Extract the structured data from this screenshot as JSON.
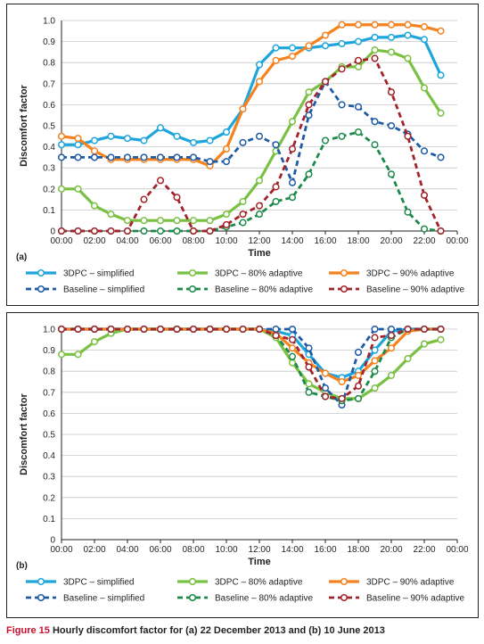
{
  "colors": {
    "blue": "#1ea5dc",
    "green": "#7ac143",
    "orange": "#f5821f",
    "dark_blue": "#1f5aa6",
    "dark_green": "#1d8a4b",
    "dark_red": "#a3232a",
    "grid": "#c8c8c8"
  },
  "figure_caption": {
    "label": "Figure 15",
    "text": "Hourly discomfort factor for (a) 22 December 2013 and (b) 10 June 2013"
  },
  "chart_data": [
    {
      "type": "line",
      "panel_label": "(a)",
      "xlabel": "Time",
      "ylabel": "Discomfort factor",
      "x_ticks": [
        "00:00",
        "02:00",
        "04:00",
        "06:00",
        "08:00",
        "10:00",
        "12:00",
        "14:00",
        "16:00",
        "18:00",
        "20:00",
        "22:00",
        "00:00"
      ],
      "xlim": [
        0,
        24
      ],
      "ylim": [
        0,
        1.0
      ],
      "y_ticks": [
        "0",
        "0.1",
        "0.2",
        "0.3",
        "0.4",
        "0.5",
        "0.6",
        "0.7",
        "0.8",
        "0.9",
        "1.0"
      ],
      "grid": "horizontal",
      "legend_position": "bottom",
      "x": [
        0,
        1,
        2,
        3,
        4,
        5,
        6,
        7,
        8,
        9,
        10,
        11,
        12,
        13,
        14,
        15,
        16,
        17,
        18,
        19,
        20,
        21,
        22,
        23
      ],
      "series": [
        {
          "name": "3DPC – simplified",
          "style": "solid",
          "color": "blue",
          "values": [
            0.41,
            0.41,
            0.43,
            0.45,
            0.44,
            0.43,
            0.49,
            0.45,
            0.42,
            0.43,
            0.47,
            0.58,
            0.79,
            0.87,
            0.87,
            0.87,
            0.88,
            0.89,
            0.9,
            0.92,
            0.92,
            0.93,
            0.91,
            0.74
          ]
        },
        {
          "name": "3DPC – 80% adaptive",
          "style": "solid",
          "color": "green",
          "values": [
            0.2,
            0.2,
            0.12,
            0.08,
            0.05,
            0.05,
            0.05,
            0.05,
            0.05,
            0.05,
            0.08,
            0.14,
            0.24,
            0.38,
            0.52,
            0.66,
            0.71,
            0.78,
            0.78,
            0.86,
            0.85,
            0.82,
            0.68,
            0.56
          ]
        },
        {
          "name": "3DPC – 90% adaptive",
          "style": "solid",
          "color": "orange",
          "values": [
            0.45,
            0.44,
            0.38,
            0.34,
            0.34,
            0.34,
            0.34,
            0.34,
            0.34,
            0.31,
            0.39,
            0.58,
            0.71,
            0.81,
            0.83,
            0.88,
            0.93,
            0.98,
            0.98,
            0.98,
            0.98,
            0.98,
            0.97,
            0.95
          ]
        },
        {
          "name": "Baseline – simplified",
          "style": "dashed",
          "color": "dark_blue",
          "values": [
            0.35,
            0.35,
            0.35,
            0.35,
            0.35,
            0.35,
            0.35,
            0.35,
            0.35,
            0.33,
            0.33,
            0.42,
            0.45,
            0.41,
            0.23,
            0.55,
            0.71,
            0.6,
            0.59,
            0.52,
            0.5,
            0.46,
            0.38,
            0.35
          ]
        },
        {
          "name": "Baseline – 80% adaptive",
          "style": "dashed",
          "color": "dark_green",
          "values": [
            0,
            0,
            0,
            0,
            0,
            0,
            0,
            0,
            0,
            0,
            0.02,
            0.04,
            0.08,
            0.14,
            0.16,
            0.27,
            0.43,
            0.45,
            0.47,
            0.41,
            0.27,
            0.09,
            0.01,
            0
          ]
        },
        {
          "name": "Baseline – 90% adaptive",
          "style": "dashed",
          "color": "dark_red",
          "values": [
            0,
            0,
            0,
            0,
            0,
            0.15,
            0.24,
            0.16,
            0,
            0,
            0.03,
            0.08,
            0.12,
            0.21,
            0.39,
            0.6,
            0.71,
            0.77,
            0.81,
            0.82,
            0.66,
            0.45,
            0.17,
            0
          ]
        }
      ]
    },
    {
      "type": "line",
      "panel_label": "(b)",
      "xlabel": "Time",
      "ylabel": "Discomfort factor",
      "x_ticks": [
        "00:00",
        "02:00",
        "04:00",
        "06:00",
        "08:00",
        "10:00",
        "12:00",
        "14:00",
        "16:00",
        "18:00",
        "20:00",
        "22:00",
        "00:00"
      ],
      "xlim": [
        0,
        24
      ],
      "ylim": [
        0,
        1.0
      ],
      "y_ticks": [
        "0",
        "0.1",
        "0.2",
        "0.3",
        "0.4",
        "0.5",
        "0.6",
        "0.7",
        "0.8",
        "0.9",
        "1.0"
      ],
      "grid": "horizontal",
      "legend_position": "bottom",
      "x": [
        0,
        1,
        2,
        3,
        4,
        5,
        6,
        7,
        8,
        9,
        10,
        11,
        12,
        13,
        14,
        15,
        16,
        17,
        18,
        19,
        20,
        21,
        22,
        23
      ],
      "series": [
        {
          "name": "3DPC – simplified",
          "style": "solid",
          "color": "blue",
          "values": [
            1,
            1,
            1,
            1,
            1,
            1,
            1,
            1,
            1,
            1,
            1,
            1,
            1,
            0.99,
            0.97,
            0.88,
            0.79,
            0.77,
            0.8,
            0.9,
            0.99,
            1,
            1,
            1
          ]
        },
        {
          "name": "3DPC – 80% adaptive",
          "style": "solid",
          "color": "green",
          "values": [
            0.88,
            0.88,
            0.94,
            0.98,
            1,
            1,
            1,
            1,
            1,
            1,
            1,
            1,
            1,
            0.96,
            0.84,
            0.74,
            0.7,
            0.67,
            0.67,
            0.72,
            0.78,
            0.86,
            0.93,
            0.95
          ]
        },
        {
          "name": "3DPC – 90% adaptive",
          "style": "solid",
          "color": "orange",
          "values": [
            1,
            1,
            1,
            1,
            1,
            1,
            1,
            1,
            1,
            1,
            1,
            1,
            1,
            0.98,
            0.91,
            0.84,
            0.79,
            0.75,
            0.78,
            0.85,
            0.91,
            0.99,
            1,
            1
          ]
        },
        {
          "name": "Baseline – simplified",
          "style": "dashed",
          "color": "dark_blue",
          "values": [
            1,
            1,
            1,
            1,
            1,
            1,
            1,
            1,
            1,
            1,
            1,
            1,
            1,
            1,
            1,
            0.91,
            0.72,
            0.64,
            0.89,
            1,
            1,
            1,
            1,
            1
          ]
        },
        {
          "name": "Baseline – 80% adaptive",
          "style": "dashed",
          "color": "dark_green",
          "values": [
            1,
            1,
            1,
            1,
            1,
            1,
            1,
            1,
            1,
            1,
            1,
            1,
            1,
            0.97,
            0.87,
            0.7,
            0.68,
            0.66,
            0.67,
            0.8,
            0.96,
            1,
            1,
            1
          ]
        },
        {
          "name": "Baseline – 90% adaptive",
          "style": "dashed",
          "color": "dark_red",
          "values": [
            1,
            1,
            1,
            1,
            1,
            1,
            1,
            1,
            1,
            1,
            1,
            1,
            1,
            0.97,
            0.95,
            0.82,
            0.68,
            0.67,
            0.73,
            0.96,
            0.97,
            1,
            1,
            1
          ]
        }
      ]
    }
  ]
}
